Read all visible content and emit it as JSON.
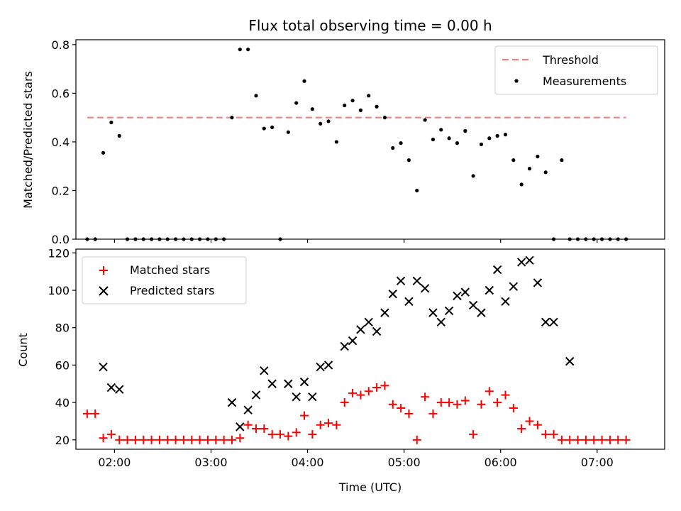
{
  "chart_data": [
    {
      "type": "scatter",
      "title": "Flux total observing time = 0.00 h",
      "xlabel": "",
      "ylabel": "Matched/Predicted stars",
      "ylim": [
        0,
        0.82
      ],
      "yticks": [
        "0.0",
        "0.2",
        "0.4",
        "0.6",
        "0.8"
      ],
      "xlim": [
        "01:36",
        "07:42"
      ],
      "grid": false,
      "legend_position": "top-right",
      "threshold": {
        "name": "Threshold",
        "value": 0.5,
        "x_range": [
          "01:43",
          "07:18"
        ],
        "color": "#f47c7c"
      },
      "series": [
        {
          "name": "Measurements",
          "marker": "dot",
          "color": "#000000",
          "x": [
            "01:43",
            "01:48",
            "01:53",
            "01:58",
            "02:03",
            "02:08",
            "02:13",
            "02:18",
            "02:23",
            "02:28",
            "02:33",
            "02:38",
            "02:43",
            "02:48",
            "02:53",
            "02:58",
            "03:03",
            "03:08",
            "03:13",
            "03:18",
            "03:23",
            "03:28",
            "03:33",
            "03:38",
            "03:43",
            "03:48",
            "03:53",
            "03:58",
            "04:03",
            "04:08",
            "04:13",
            "04:18",
            "04:23",
            "04:28",
            "04:33",
            "04:38",
            "04:43",
            "04:48",
            "04:53",
            "04:58",
            "05:03",
            "05:08",
            "05:13",
            "05:18",
            "05:23",
            "05:28",
            "05:33",
            "05:38",
            "05:43",
            "05:48",
            "05:53",
            "05:58",
            "06:03",
            "06:08",
            "06:13",
            "06:18",
            "06:23",
            "06:28",
            "06:33",
            "06:38",
            "06:43",
            "06:48",
            "06:53",
            "06:58",
            "07:03",
            "07:08",
            "07:13",
            "07:18"
          ],
          "y": [
            0,
            0,
            0.355,
            0.48,
            0.425,
            0,
            0,
            0,
            0,
            0,
            0,
            0,
            0,
            0,
            0,
            0,
            0,
            0,
            0.5,
            0.78,
            0.78,
            0.59,
            0.455,
            0.46,
            0,
            0.44,
            0.56,
            0.65,
            0.535,
            0.475,
            0.485,
            0.4,
            0.55,
            0.57,
            0.53,
            0.59,
            0.545,
            0.5,
            0.375,
            0.395,
            0.325,
            0.2,
            0.49,
            0.41,
            0.45,
            0.415,
            0.395,
            0.445,
            0.26,
            0.39,
            0.415,
            0.425,
            0.43,
            0.325,
            0.225,
            0.29,
            0.34,
            0.275,
            0,
            0.325,
            0,
            0,
            0,
            0,
            0,
            0,
            0,
            0
          ]
        }
      ]
    },
    {
      "type": "scatter",
      "title": "",
      "xlabel": "Time (UTC)",
      "ylabel": "Count",
      "ylim": [
        15,
        122
      ],
      "yticks": [
        "20",
        "40",
        "60",
        "80",
        "100",
        "120"
      ],
      "xlim": [
        "01:36",
        "07:42"
      ],
      "xticks": [
        "02:00",
        "03:00",
        "04:00",
        "05:00",
        "06:00",
        "07:00"
      ],
      "grid": false,
      "legend_position": "top-left",
      "series": [
        {
          "name": "Matched stars",
          "marker": "plus",
          "color": "#ff0000",
          "x": [
            "01:43",
            "01:48",
            "01:53",
            "01:58",
            "02:03",
            "02:08",
            "02:13",
            "02:18",
            "02:23",
            "02:28",
            "02:33",
            "02:38",
            "02:43",
            "02:48",
            "02:53",
            "02:58",
            "03:03",
            "03:08",
            "03:13",
            "03:18",
            "03:23",
            "03:28",
            "03:33",
            "03:38",
            "03:43",
            "03:48",
            "03:53",
            "03:58",
            "04:03",
            "04:08",
            "04:13",
            "04:18",
            "04:23",
            "04:28",
            "04:33",
            "04:38",
            "04:43",
            "04:48",
            "04:53",
            "04:58",
            "05:03",
            "05:08",
            "05:13",
            "05:18",
            "05:23",
            "05:28",
            "05:33",
            "05:38",
            "05:43",
            "05:48",
            "05:53",
            "05:58",
            "06:03",
            "06:08",
            "06:13",
            "06:18",
            "06:23",
            "06:28",
            "06:33",
            "06:38",
            "06:43",
            "06:48",
            "06:53",
            "06:58",
            "07:03",
            "07:08",
            "07:13",
            "07:18"
          ],
          "y": [
            34,
            34,
            21,
            23,
            20,
            20,
            20,
            20,
            20,
            20,
            20,
            20,
            20,
            20,
            20,
            20,
            20,
            20,
            20,
            21,
            28,
            26,
            26,
            23,
            23,
            22,
            24,
            33,
            23,
            28,
            29,
            28,
            40,
            45,
            44,
            46,
            48,
            49,
            39,
            37,
            34,
            20,
            43,
            34,
            40,
            40,
            39,
            41,
            23,
            39,
            46,
            40,
            44,
            37,
            26,
            30,
            28,
            23,
            23,
            20,
            20,
            20,
            20,
            20,
            20,
            20,
            20,
            20
          ]
        },
        {
          "name": "Predicted stars",
          "marker": "x",
          "color": "#000000",
          "x": [
            "01:53",
            "01:58",
            "02:03",
            "03:13",
            "03:18",
            "03:23",
            "03:28",
            "03:33",
            "03:38",
            "03:48",
            "03:53",
            "03:58",
            "04:03",
            "04:08",
            "04:13",
            "04:23",
            "04:28",
            "04:33",
            "04:38",
            "04:43",
            "04:48",
            "04:53",
            "04:58",
            "05:03",
            "05:08",
            "05:13",
            "05:18",
            "05:23",
            "05:28",
            "05:33",
            "05:38",
            "05:43",
            "05:48",
            "05:53",
            "05:58",
            "06:03",
            "06:08",
            "06:13",
            "06:18",
            "06:23",
            "06:28",
            "06:33",
            "06:43"
          ],
          "y": [
            59,
            48,
            47,
            40,
            27,
            36,
            44,
            57,
            50,
            50,
            43,
            51,
            43,
            59,
            60,
            70,
            73,
            79,
            83,
            78,
            88,
            98,
            105,
            94,
            105,
            101,
            88,
            83,
            89,
            97,
            99,
            92,
            88,
            100,
            111,
            94,
            102,
            115,
            116,
            104,
            83,
            83,
            62
          ]
        }
      ]
    }
  ]
}
